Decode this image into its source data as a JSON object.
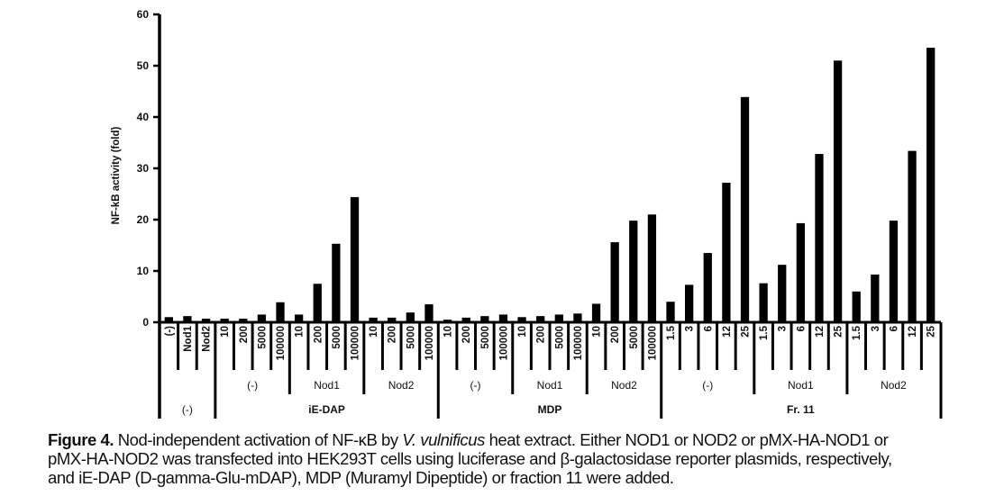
{
  "chart_data": {
    "type": "bar",
    "title": "",
    "ylabel": "NF-kB activity (fold)",
    "xlabel": "",
    "ylim": [
      0,
      60
    ],
    "yticks": [
      0,
      10,
      20,
      30,
      40,
      50,
      60
    ],
    "grid": false,
    "bar_color": "#000000",
    "groups": [
      {
        "label": "(-)",
        "subgroups": [
          {
            "label": "",
            "categories": [
              "(-)",
              "Nod1",
              "Nod2"
            ],
            "values": [
              1.0,
              1.2,
              0.7
            ]
          }
        ]
      },
      {
        "label": "iE-DAP",
        "subgroups": [
          {
            "label": "(-)",
            "categories": [
              "10",
              "200",
              "5000",
              "100000"
            ],
            "values": [
              0.7,
              0.7,
              1.5,
              3.9
            ]
          },
          {
            "label": "Nod1",
            "categories": [
              "10",
              "200",
              "5000",
              "100000"
            ],
            "values": [
              1.5,
              7.5,
              15.3,
              24.4
            ]
          },
          {
            "label": "Nod2",
            "categories": [
              "10",
              "200",
              "5000",
              "100000"
            ],
            "values": [
              0.9,
              0.9,
              1.9,
              3.5
            ]
          }
        ]
      },
      {
        "label": "MDP",
        "subgroups": [
          {
            "label": "(-)",
            "categories": [
              "10",
              "200",
              "5000",
              "100000"
            ],
            "values": [
              0.5,
              0.9,
              1.2,
              1.5
            ]
          },
          {
            "label": "Nod1",
            "categories": [
              "10",
              "200",
              "5000",
              "100000"
            ],
            "values": [
              1.0,
              1.2,
              1.5,
              1.7
            ]
          },
          {
            "label": "Nod2",
            "categories": [
              "10",
              "200",
              "5000",
              "100000"
            ],
            "values": [
              3.6,
              15.6,
              19.8,
              21.0
            ]
          }
        ]
      },
      {
        "label": "Fr. 11",
        "subgroups": [
          {
            "label": "(-)",
            "categories": [
              "1.5",
              "3",
              "6",
              "12",
              "25"
            ],
            "values": [
              4.0,
              7.3,
              13.5,
              27.2,
              43.9
            ]
          },
          {
            "label": "Nod1",
            "categories": [
              "1.5",
              "3",
              "6",
              "12",
              "25"
            ],
            "values": [
              7.6,
              11.2,
              19.3,
              32.8,
              51.0
            ]
          },
          {
            "label": "Nod2",
            "categories": [
              "1.5",
              "3",
              "6",
              "12",
              "25"
            ],
            "values": [
              6.0,
              9.3,
              19.8,
              33.4,
              53.5
            ]
          }
        ]
      }
    ]
  },
  "caption": {
    "label": "Figure 4.",
    "line1_a": " Nod-independent activation of NF-κB by ",
    "line1_italic": "V. vulnificus",
    "line1_b": " heat extract. Either NOD1 or NOD2 or pMX-HA-NOD1 or",
    "line2": "pMX-HA-NOD2 was transfected into HEK293T cells using luciferase and β-galactosidase reporter plasmids, respectively,",
    "line3": "and iE-DAP (D-gamma-Glu-mDAP), MDP (Muramyl Dipeptide) or fraction 11 were added."
  }
}
